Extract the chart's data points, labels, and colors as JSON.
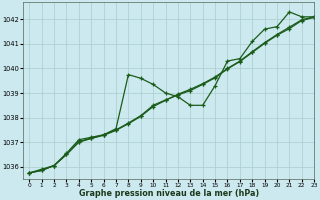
{
  "title": "",
  "xlabel": "Graphe pression niveau de la mer (hPa)",
  "ylabel": "",
  "bg_color": "#cde9f0",
  "grid_color": "#aacccc",
  "line_color": "#1a5c1a",
  "xlim": [
    -0.5,
    23
  ],
  "ylim": [
    1035.5,
    1042.7
  ],
  "yticks": [
    1036,
    1037,
    1038,
    1039,
    1040,
    1041,
    1042
  ],
  "xticks": [
    0,
    1,
    2,
    3,
    4,
    5,
    6,
    7,
    8,
    9,
    10,
    11,
    12,
    13,
    14,
    15,
    16,
    17,
    18,
    19,
    20,
    21,
    22,
    23
  ],
  "series1_x": [
    0,
    1,
    2,
    3,
    4,
    5,
    6,
    7,
    8,
    9,
    10,
    11,
    12,
    13,
    14,
    15,
    16,
    17,
    18,
    19,
    20,
    21,
    22,
    23
  ],
  "series1_y": [
    1035.75,
    1035.9,
    1036.05,
    1036.55,
    1037.1,
    1037.2,
    1037.3,
    1037.55,
    1039.75,
    1039.6,
    1039.35,
    1039.0,
    1038.85,
    1038.5,
    1038.5,
    1039.3,
    1040.3,
    1040.4,
    1041.1,
    1041.6,
    1041.7,
    1042.3,
    1042.1,
    1042.1
  ],
  "series2_x": [
    0,
    1,
    2,
    3,
    4,
    5,
    6,
    7,
    8,
    9,
    10,
    11,
    12,
    13,
    14,
    15,
    16,
    17,
    18,
    19,
    20,
    21,
    22,
    23
  ],
  "series2_y": [
    1035.75,
    1035.85,
    1036.05,
    1036.5,
    1037.0,
    1037.15,
    1037.28,
    1037.48,
    1037.75,
    1038.05,
    1038.45,
    1038.7,
    1038.95,
    1039.15,
    1039.38,
    1039.65,
    1040.0,
    1040.3,
    1040.68,
    1041.05,
    1041.38,
    1041.68,
    1041.98,
    1042.1
  ],
  "series3_x": [
    0,
    1,
    2,
    3,
    4,
    5,
    6,
    7,
    8,
    9,
    10,
    11,
    12,
    13,
    14,
    15,
    16,
    17,
    18,
    19,
    20,
    21,
    22,
    23
  ],
  "series3_y": [
    1035.75,
    1035.85,
    1036.05,
    1036.5,
    1037.02,
    1037.17,
    1037.3,
    1037.5,
    1037.78,
    1038.08,
    1038.5,
    1038.72,
    1038.92,
    1039.1,
    1039.35,
    1039.62,
    1039.98,
    1040.28,
    1040.65,
    1041.02,
    1041.35,
    1041.62,
    1041.95,
    1042.08
  ]
}
